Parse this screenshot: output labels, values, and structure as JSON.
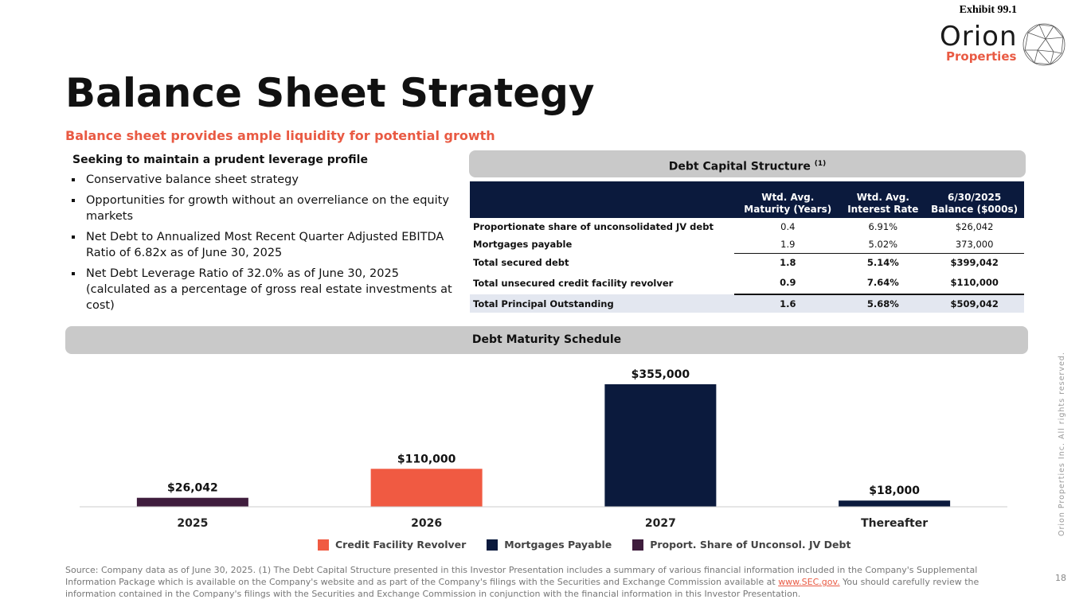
{
  "header": {
    "exhibit": "Exhibit 99.1",
    "logo_word": "Orion",
    "logo_sub": "Properties",
    "title": "Balance Sheet Strategy",
    "subtitle": "Balance sheet provides ample liquidity for potential growth"
  },
  "leverage": {
    "heading": "Seeking to maintain a prudent leverage profile",
    "bullets": [
      "Conservative balance sheet strategy",
      "Opportunities for growth without an overreliance on the equity markets",
      "Net Debt to Annualized Most Recent Quarter Adjusted EBITDA Ratio of 6.82x as of June 30, 2025",
      "Net Debt Leverage Ratio of 32.0% as of June 30, 2025 (calculated as a percentage of gross real estate investments at cost)"
    ]
  },
  "debt_structure": {
    "banner": "Debt Capital Structure",
    "banner_note": "(1)",
    "columns": [
      "",
      "Wtd. Avg. Maturity (Years)",
      "Wtd. Avg. Interest Rate",
      "6/30/2025 Balance ($000s)"
    ],
    "rows": [
      {
        "label": "Proportionate share of unconsolidated JV debt",
        "maturity": "0.4",
        "rate": "6.91%",
        "balance": "$26,042"
      },
      {
        "label": "Mortgages payable",
        "maturity": "1.9",
        "rate": "5.02%",
        "balance": "373,000"
      },
      {
        "label": "Total secured debt",
        "maturity": "1.8",
        "rate": "5.14%",
        "balance": "$399,042"
      },
      {
        "label": "Total unsecured credit facility revolver",
        "maturity": "0.9",
        "rate": "7.64%",
        "balance": "$110,000"
      },
      {
        "label": "Total Principal Outstanding",
        "maturity": "1.6",
        "rate": "5.68%",
        "balance": "$509,042"
      }
    ]
  },
  "maturity_banner": "Debt Maturity Schedule",
  "chart_data": {
    "type": "bar",
    "title": "Debt Maturity Schedule",
    "categories": [
      "2025",
      "2026",
      "2027",
      "Thereafter"
    ],
    "series": [
      {
        "name": "Credit Facility Revolver",
        "color": "#f05a42",
        "values": [
          0,
          110000,
          0,
          0
        ]
      },
      {
        "name": "Mortgages Payable",
        "color": "#0b1a3d",
        "values": [
          0,
          0,
          355000,
          18000
        ]
      },
      {
        "name": "Proport. Share of Unconsol. JV Debt",
        "color": "#3f1d3d",
        "values": [
          26042,
          0,
          0,
          0
        ]
      }
    ],
    "data_labels": [
      "$26,042",
      "$110,000",
      "$355,000",
      "$18,000"
    ],
    "ylim": [
      0,
      355000
    ],
    "xlabel": "",
    "ylabel": "",
    "legend": "bottom"
  },
  "footnote": {
    "text": "Source: Company data as of June 30, 2025. (1) The Debt Capital Structure presented in this Investor Presentation includes a summary of various financial information included in the Company's Supplemental Information Package which is available on the Company's website and as part of the Company's filings with the Securities and Exchange Commission available at",
    "link": "www.SEC.gov.",
    "text_after": "You should carefully review the information contained in the Company's filings with the Securities and Exchange Commission in conjunction with the financial information in this Investor Presentation."
  },
  "page_number": "18",
  "rights": "Orion Properties Inc. All rights reserved."
}
